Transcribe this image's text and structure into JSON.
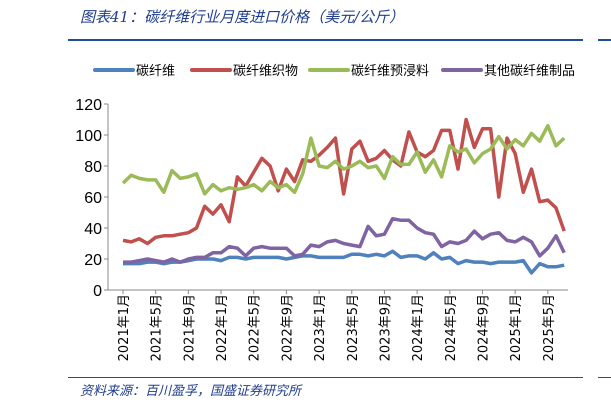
{
  "title": "图表41：碳纤维行业月度进口价格（美元/公斤）",
  "source": "资料来源：百川盈孚，国盛证券研究所",
  "chart_data": {
    "type": "line",
    "title": "碳纤维行业月度进口价格（美元/公斤）",
    "xlabel": "",
    "ylabel": "",
    "ylim": [
      0,
      120
    ],
    "yticks": [
      0,
      20,
      40,
      60,
      80,
      100,
      120
    ],
    "x_start": "2021-01",
    "x_end": "2025-07",
    "xtick_labels": [
      "2021年1月",
      "2021年5月",
      "2021年9月",
      "2022年1月",
      "2022年5月",
      "2022年9月",
      "2023年1月",
      "2023年5月",
      "2023年9月",
      "2024年1月",
      "2024年5月",
      "2024年9月",
      "2025年1月",
      "2025年5月"
    ],
    "legend_position": "top",
    "series": [
      {
        "name": "碳纤维",
        "color": "#4f81bd",
        "values": [
          17,
          17,
          17,
          18,
          18,
          17,
          18,
          18,
          19,
          20,
          20,
          20,
          19,
          21,
          21,
          20,
          21,
          21,
          21,
          21,
          20,
          21,
          22,
          22,
          21,
          21,
          21,
          21,
          23,
          23,
          22,
          23,
          22,
          25,
          21,
          22,
          22,
          20,
          24,
          20,
          21,
          17,
          19,
          18,
          18,
          17,
          18,
          18,
          18,
          19,
          11,
          17,
          15,
          15,
          16
        ]
      },
      {
        "name": "碳纤维织物",
        "color": "#c0504d",
        "values": [
          32,
          31,
          33,
          30,
          34,
          35,
          35,
          36,
          37,
          40,
          54,
          49,
          55,
          44,
          73,
          67,
          76,
          85,
          80,
          64,
          78,
          70,
          84,
          83,
          87,
          92,
          98,
          62,
          91,
          96,
          83,
          85,
          90,
          84,
          80,
          102,
          89,
          86,
          90,
          103,
          103,
          78,
          110,
          92,
          104,
          104,
          60,
          98,
          88,
          63,
          78,
          57,
          58,
          53,
          38
        ]
      },
      {
        "name": "碳纤维预浸料",
        "color": "#9bbb59",
        "values": [
          69,
          74,
          72,
          71,
          71,
          63,
          77,
          72,
          73,
          75,
          62,
          68,
          64,
          66,
          65,
          66,
          68,
          64,
          70,
          66,
          68,
          63,
          75,
          98,
          80,
          79,
          83,
          78,
          80,
          83,
          79,
          80,
          72,
          86,
          81,
          81,
          89,
          76,
          84,
          73,
          93,
          89,
          91,
          82,
          88,
          91,
          99,
          91,
          97,
          93,
          101,
          96,
          106,
          93,
          98
        ]
      },
      {
        "name": "其他碳纤维制品",
        "color": "#8064a2",
        "values": [
          18,
          18,
          19,
          20,
          19,
          18,
          20,
          18,
          20,
          21,
          21,
          24,
          24,
          28,
          27,
          22,
          27,
          28,
          27,
          27,
          27,
          22,
          23,
          29,
          28,
          31,
          32,
          30,
          29,
          28,
          41,
          35,
          36,
          46,
          45,
          45,
          40,
          37,
          36,
          28,
          31,
          30,
          32,
          38,
          33,
          36,
          37,
          32,
          31,
          34,
          31,
          22,
          27,
          35,
          24
        ]
      }
    ]
  }
}
